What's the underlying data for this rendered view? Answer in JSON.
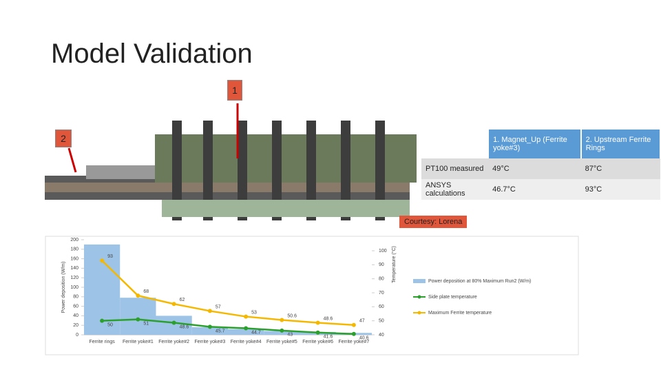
{
  "title": "Model Validation",
  "callouts": [
    "1",
    "2"
  ],
  "courtesy": "Courtesy: Lorena",
  "table": {
    "header": [
      "1. Magnet_Up (Ferrite yoke#3)",
      "2. Upstream Ferrite Rings"
    ],
    "rows": [
      [
        "PT100 measured",
        "49°C",
        "87°C"
      ],
      [
        "ANSYS calculations",
        "46.7°C",
        "93°C"
      ]
    ]
  },
  "chart_data": {
    "type": "bar-line",
    "ylabel": "Power deposition (W/m)",
    "y2label": "Temperature (°C)",
    "categories": [
      "Ferrite rings",
      "Ferrite yoke#1",
      "Ferrite yoke#2",
      "Ferrite yoke#3",
      "Ferrite yoke#4",
      "Ferrite yoke#5",
      "Ferrite yoke#6",
      "Ferrite yoke#7"
    ],
    "ylim": [
      0,
      200
    ],
    "yticks": [
      0,
      20,
      40,
      60,
      80,
      100,
      120,
      140,
      160,
      180,
      200
    ],
    "y2lim": [
      40,
      100
    ],
    "y2ticks": [
      40,
      50,
      60,
      70,
      80,
      90,
      100
    ],
    "series": [
      {
        "name": "Power deposition at 80% Maximum Run2 (W/m)",
        "color": "#9dc3e6",
        "type": "bar",
        "values": [
          190,
          78,
          40,
          16,
          12,
          8,
          6,
          4
        ]
      },
      {
        "name": "Side plate temperature",
        "color": "#2ca02c",
        "type": "line",
        "axis": "y2",
        "values": [
          50,
          51,
          48.6,
          45.7,
          44.7,
          43,
          41.6,
          40.6
        ]
      },
      {
        "name": "Maximum Ferrite temperature",
        "color": "#f5b800",
        "type": "line",
        "axis": "y2",
        "values": [
          93,
          68,
          62,
          57,
          53,
          50.6,
          48.6,
          47
        ]
      }
    ]
  }
}
